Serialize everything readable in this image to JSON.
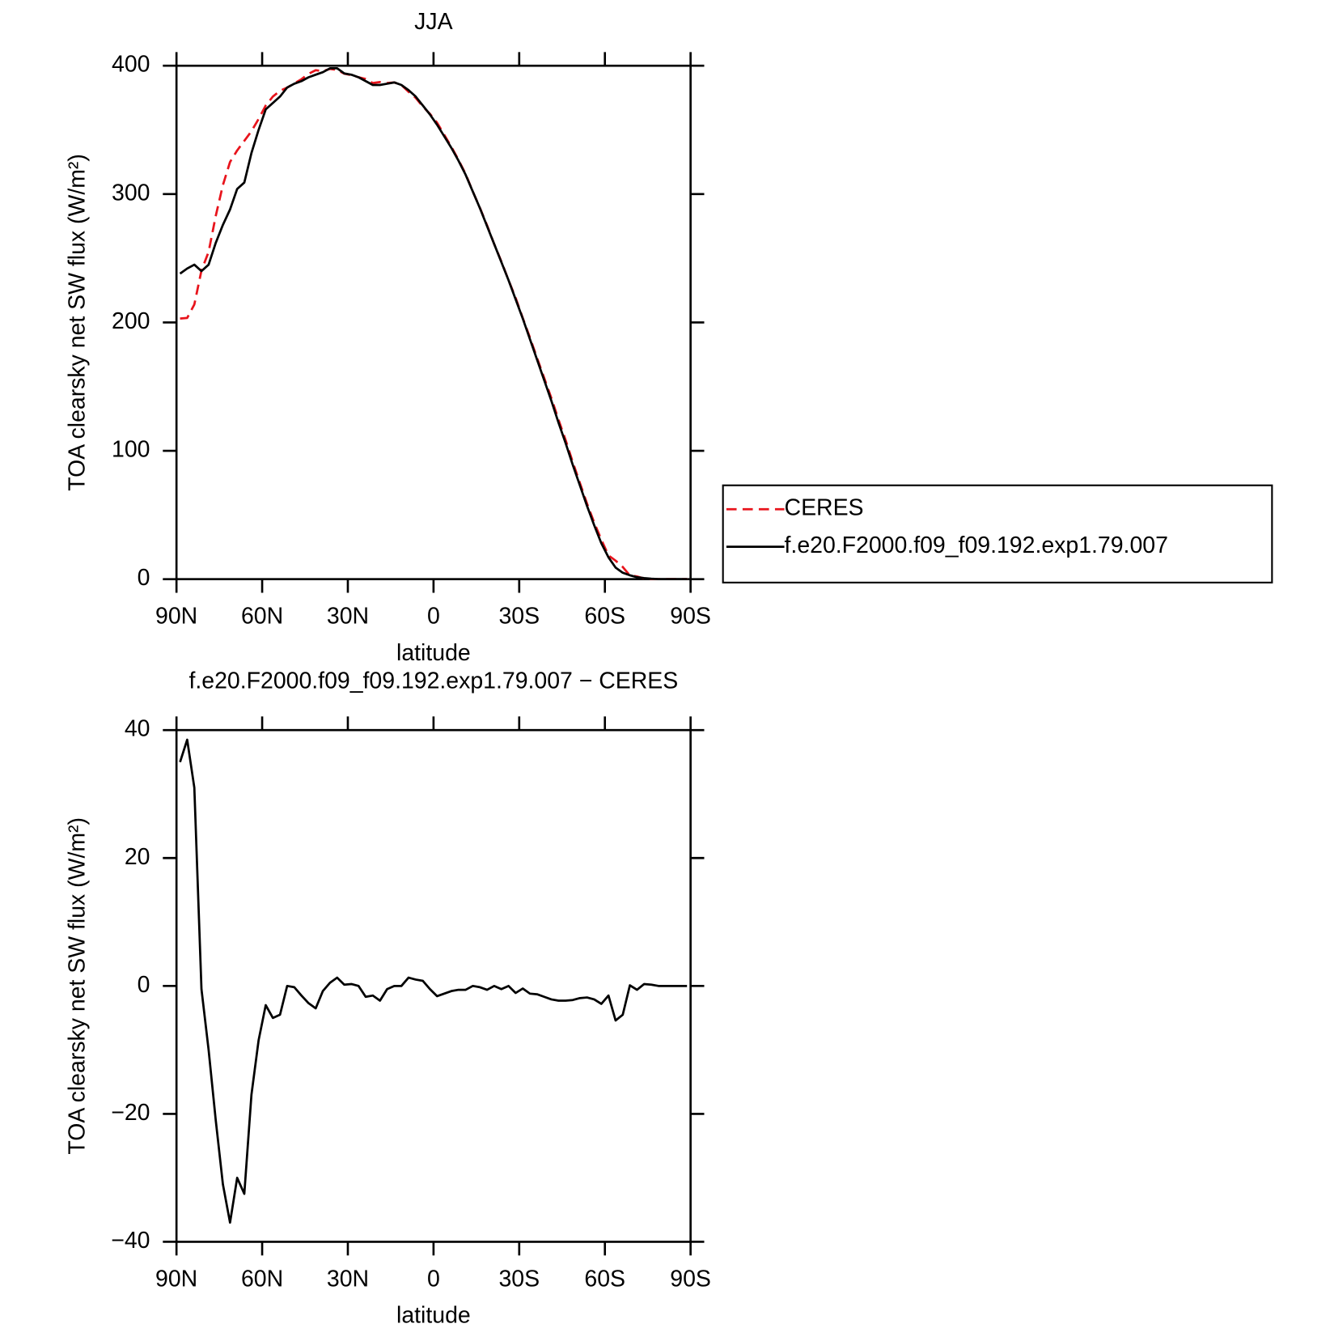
{
  "chart_data": [
    {
      "type": "line",
      "title": "JJA",
      "x_label": "latitude",
      "y_label": "TOA clearsky net SW flux (W/m²)",
      "x": [
        88.75,
        86.25,
        83.75,
        81.25,
        78.75,
        76.25,
        73.75,
        71.25,
        68.75,
        66.25,
        63.75,
        61.25,
        58.75,
        56.25,
        53.75,
        51.25,
        48.75,
        46.25,
        43.75,
        41.25,
        38.75,
        36.25,
        33.75,
        31.25,
        28.75,
        26.25,
        23.75,
        21.25,
        18.75,
        16.25,
        13.75,
        11.25,
        8.75,
        6.25,
        3.75,
        1.25,
        -1.25,
        -3.75,
        -6.25,
        -8.75,
        -11.25,
        -13.75,
        -16.25,
        -18.75,
        -21.25,
        -23.75,
        -26.25,
        -28.75,
        -31.25,
        -33.75,
        -36.25,
        -38.75,
        -41.25,
        -43.75,
        -46.25,
        -48.75,
        -51.25,
        -53.75,
        -56.25,
        -58.75,
        -61.25,
        -63.75,
        -66.25,
        -68.75,
        -71.25,
        -73.75,
        -76.25,
        -78.75,
        -81.25,
        -83.75,
        -86.25,
        -88.75
      ],
      "series": [
        {
          "name": "CERES",
          "color": "#e8141c",
          "line_style": "dashed",
          "values": [
            203,
            203.5,
            214,
            240.5,
            255,
            283,
            307,
            325,
            334,
            341.5,
            349,
            358.5,
            369,
            376,
            380.5,
            383,
            386.2,
            389.5,
            393.7,
            396.5,
            395.8,
            397.5,
            396.7,
            393.8,
            392.7,
            391,
            389.7,
            386.5,
            387.3,
            386.5,
            387,
            385,
            379.7,
            375,
            368.2,
            362.5,
            355.6,
            346.2,
            336.8,
            326.6,
            315.6,
            302,
            289.2,
            275.6,
            261,
            247.5,
            233,
            219.1,
            203.4,
            188.2,
            172.3,
            156.7,
            141.1,
            124.3,
            108.3,
            91.2,
            74.9,
            58.8,
            44.1,
            30.8,
            18.5,
            14.4,
            9.5,
            2.9,
            2.1,
            0.5,
            0.1,
            0,
            0,
            0,
            0,
            0
          ]
        },
        {
          "name": "f.e20.F2000.f09_f09.192.exp1.79.007",
          "color": "#000000",
          "line_style": "solid",
          "values": [
            238,
            242,
            245,
            240,
            245,
            262,
            276,
            288,
            304,
            309,
            332,
            350,
            366,
            371,
            376,
            383,
            386,
            388,
            391,
            393,
            395,
            398,
            398,
            394,
            393,
            391,
            388,
            385,
            385,
            386,
            387,
            385,
            381,
            376,
            369,
            362,
            354,
            345,
            336,
            326,
            315,
            302,
            289,
            275,
            261,
            247,
            233,
            218,
            203,
            187,
            171,
            155,
            139,
            122,
            106,
            89,
            73,
            57,
            42,
            28,
            17,
            9,
            5,
            3,
            1.5,
            0.8,
            0.3,
            0,
            0,
            0,
            0,
            0
          ]
        }
      ],
      "xlim": [
        90,
        -90
      ],
      "xticks": [
        {
          "value": 90,
          "label": "90N"
        },
        {
          "value": 60,
          "label": "60N"
        },
        {
          "value": 30,
          "label": "30N"
        },
        0,
        {
          "value": -30,
          "label": "30S"
        },
        {
          "value": -60,
          "label": "60S"
        },
        {
          "value": -90,
          "label": "90S"
        }
      ],
      "ylim": [
        0,
        400
      ],
      "yticks": [
        0,
        100,
        200,
        300,
        400
      ],
      "legend": "right"
    },
    {
      "type": "line",
      "title": "f.e20.F2000.f09_f09.192.exp1.79.007 − CERES",
      "x_label": "latitude",
      "y_label": "TOA clearsky net SW flux (W/m²)",
      "x": [
        88.75,
        86.25,
        83.75,
        81.25,
        78.75,
        76.25,
        73.75,
        71.25,
        68.75,
        66.25,
        63.75,
        61.25,
        58.75,
        56.25,
        53.75,
        51.25,
        48.75,
        46.25,
        43.75,
        41.25,
        38.75,
        36.25,
        33.75,
        31.25,
        28.75,
        26.25,
        23.75,
        21.25,
        18.75,
        16.25,
        13.75,
        11.25,
        8.75,
        6.25,
        3.75,
        1.25,
        -1.25,
        -3.75,
        -6.25,
        -8.75,
        -11.25,
        -13.75,
        -16.25,
        -18.75,
        -21.25,
        -23.75,
        -26.25,
        -28.75,
        -31.25,
        -33.75,
        -36.25,
        -38.75,
        -41.25,
        -43.75,
        -46.25,
        -48.75,
        -51.25,
        -53.75,
        -56.25,
        -58.75,
        -61.25,
        -63.75,
        -66.25,
        -68.75,
        -71.25,
        -73.75,
        -76.25,
        -78.75,
        -81.25,
        -83.75,
        -86.25,
        -88.75
      ],
      "series": [
        {
          "color": "#000000",
          "line_style": "solid",
          "values": [
            35,
            38.5,
            31,
            -0.5,
            -10,
            -21,
            -31,
            -37,
            -30,
            -32.5,
            -17,
            -8.5,
            -3,
            -5,
            -4.5,
            0,
            -0.2,
            -1.5,
            -2.7,
            -3.5,
            -0.8,
            0.5,
            1.3,
            0.2,
            0.3,
            0,
            -1.7,
            -1.5,
            -2.3,
            -0.5,
            0,
            0,
            1.3,
            1,
            0.8,
            -0.5,
            -1.6,
            -1.2,
            -0.8,
            -0.6,
            -0.6,
            0,
            -0.2,
            -0.6,
            0,
            -0.5,
            0,
            -1.1,
            -0.4,
            -1.2,
            -1.3,
            -1.7,
            -2.1,
            -2.3,
            -2.3,
            -2.2,
            -1.9,
            -1.8,
            -2.1,
            -2.8,
            -1.5,
            -5.4,
            -4.5,
            0.1,
            -0.6,
            0.3,
            0.2,
            0,
            0,
            0,
            0,
            0
          ]
        }
      ],
      "xlim": [
        90,
        -90
      ],
      "xticks": [
        {
          "value": 90,
          "label": "90N"
        },
        {
          "value": 60,
          "label": "60N"
        },
        {
          "value": 30,
          "label": "30N"
        },
        0,
        {
          "value": -30,
          "label": "30S"
        },
        {
          "value": -60,
          "label": "60S"
        },
        {
          "value": -90,
          "label": "90S"
        }
      ],
      "ylim": [
        -40,
        40
      ],
      "yticks": [
        {
          "value": -40,
          "label": "−40"
        },
        {
          "value": -20,
          "label": "−20"
        },
        0,
        20,
        40
      ]
    }
  ]
}
